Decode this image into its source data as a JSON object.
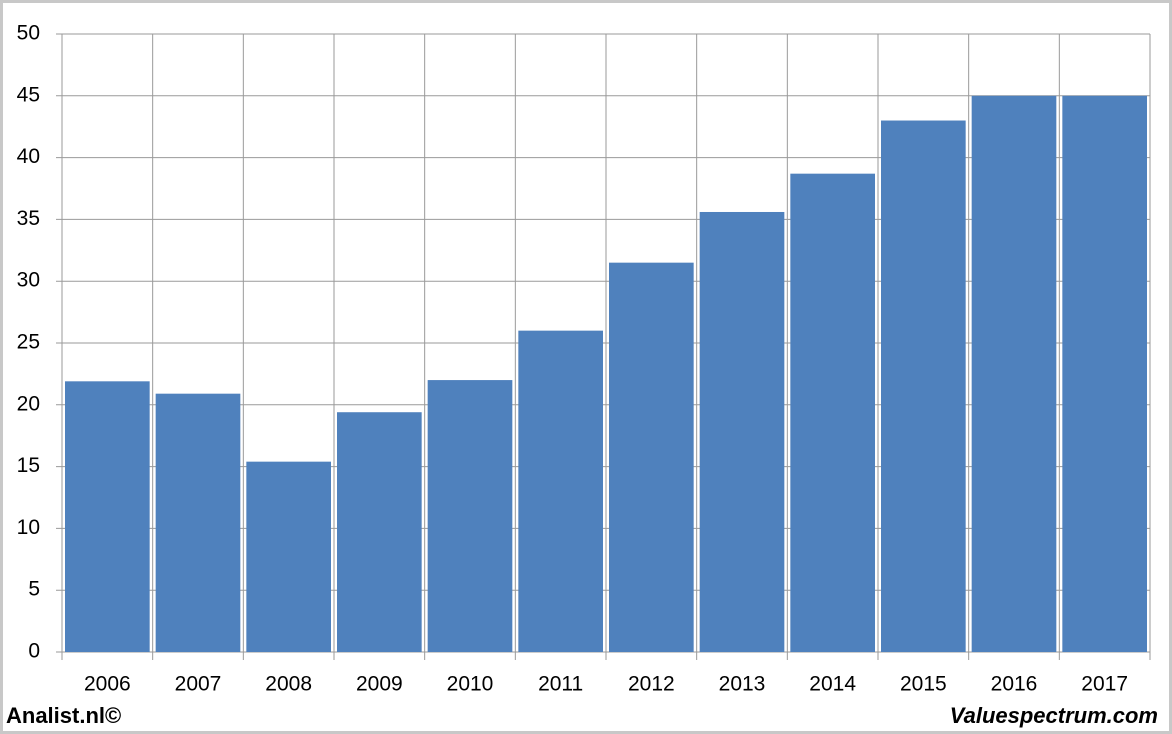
{
  "chart_data": {
    "type": "bar",
    "categories": [
      "2006",
      "2007",
      "2008",
      "2009",
      "2010",
      "2011",
      "2012",
      "2013",
      "2014",
      "2015",
      "2016",
      "2017"
    ],
    "values": [
      21.9,
      20.9,
      15.4,
      19.4,
      22.0,
      26.0,
      31.5,
      35.6,
      38.7,
      43.0,
      45.0,
      45.0
    ],
    "color": "#4f81bd",
    "ylim": [
      0,
      50
    ],
    "yticks": [
      0,
      5,
      10,
      15,
      20,
      25,
      30,
      35,
      40,
      45,
      50
    ],
    "grid": true,
    "footer_left": "Analist.nl©",
    "footer_right": "Valuespectrum.com"
  }
}
